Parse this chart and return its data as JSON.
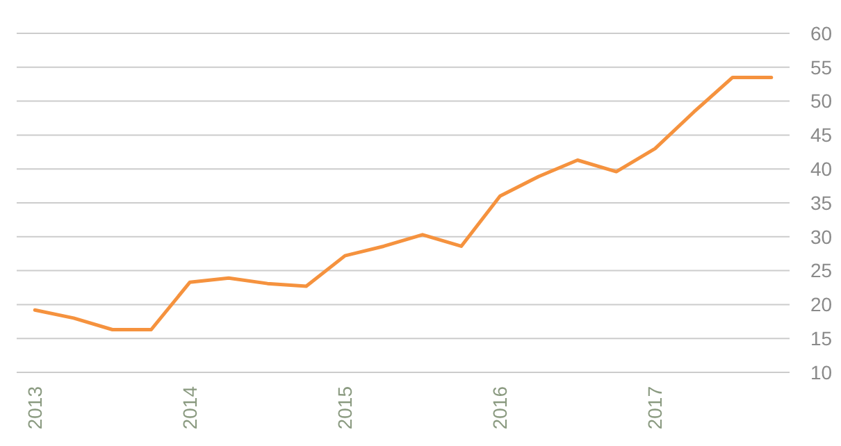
{
  "chart_data": {
    "type": "line",
    "categories": [
      "2013",
      null,
      null,
      null,
      "2014",
      null,
      null,
      null,
      "2015",
      null,
      null,
      null,
      "2016",
      null,
      null,
      null,
      "2017",
      null,
      null,
      null
    ],
    "series": [
      {
        "color": "#f5923e",
        "values": [
          19.2,
          18,
          16.3,
          16.3,
          23.3,
          23.9,
          23.1,
          22.7,
          27.2,
          28.6,
          30.3,
          28.6,
          36,
          38.9,
          41.3,
          39.6,
          43,
          48.4,
          53.5,
          53.5
        ]
      }
    ],
    "ylim": [
      10,
      60
    ],
    "yticks": [
      10,
      15,
      20,
      25,
      30,
      35,
      40,
      45,
      50,
      55,
      60
    ],
    "grid": "y",
    "marker": "none",
    "line_style": "solid"
  }
}
